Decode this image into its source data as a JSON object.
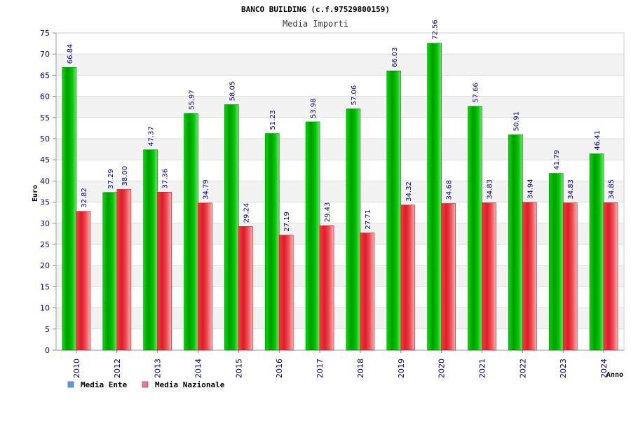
{
  "chart_data": {
    "type": "bar",
    "title": "BANCO BUILDING (c.f.97529800159)",
    "subtitle": "Media Importi",
    "xlabel": "Anno",
    "ylabel": "Euro",
    "ylim": [
      0,
      75
    ],
    "yticks": [
      "0",
      "5",
      "10",
      "15",
      "20",
      "25",
      "30",
      "35",
      "40",
      "45",
      "50",
      "55",
      "60",
      "65",
      "70",
      "75"
    ],
    "grid": "horizontal alternating bands",
    "legend_position": "bottom-left",
    "categories": [
      "2010",
      "2012",
      "2013",
      "2014",
      "2015",
      "2016",
      "2017",
      "2018",
      "2019",
      "2020",
      "2021",
      "2022",
      "2023",
      "2024"
    ],
    "series": [
      {
        "name": "Media Ente",
        "bar_color": "#00b000",
        "legend_color": "#5b9bd5",
        "values": [
          66.84,
          37.29,
          47.37,
          55.97,
          58.05,
          51.23,
          53.98,
          57.06,
          66.03,
          72.56,
          57.66,
          50.91,
          41.79,
          46.41
        ],
        "labels": [
          "66.84",
          "37.29",
          "47.37",
          "55.97",
          "58.05",
          "51.23",
          "53.98",
          "57.06",
          "66.03",
          "72.56",
          "57.66",
          "50.91",
          "41.79",
          "46.41"
        ]
      },
      {
        "name": "Media Nazionale",
        "bar_color": "#e8303a",
        "legend_color": "#e07ba0",
        "values": [
          32.82,
          38.0,
          37.36,
          34.79,
          29.24,
          27.19,
          29.43,
          27.71,
          34.32,
          34.68,
          34.83,
          34.94,
          34.83,
          34.85
        ],
        "labels": [
          "32.82",
          "38.00",
          "37.36",
          "34.79",
          "29.24",
          "27.19",
          "29.43",
          "27.71",
          "34.32",
          "34.68",
          "34.83",
          "34.94",
          "34.83",
          "34.85"
        ]
      }
    ]
  },
  "colors": {
    "axis_text": "#00008b",
    "band": "#f2f2f2",
    "grid_line": "#dddddd"
  }
}
